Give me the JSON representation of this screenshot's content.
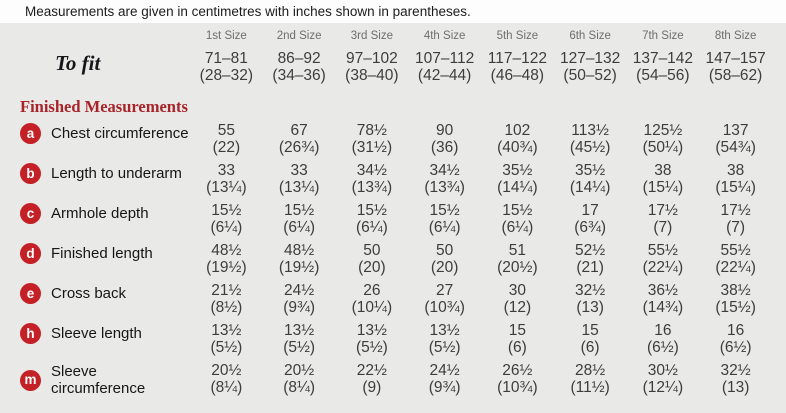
{
  "note": "Measurements are given in centimetres with inches shown in parentheses.",
  "colors": {
    "background": "#e9e9e7",
    "note_bg": "#fdfdfd",
    "badge_red": "#c42127",
    "heading_red": "#a8242a"
  },
  "table": {
    "size_headers": [
      "1st Size",
      "2nd Size",
      "3rd Size",
      "4th Size",
      "5th Size",
      "6th Size",
      "7th Size",
      "8th Size"
    ],
    "to_fit": {
      "label": "To fit",
      "cm": [
        "71–81",
        "86–92",
        "97–102",
        "107–112",
        "117–122",
        "127–132",
        "137–142",
        "147–157"
      ],
      "in": [
        "(28–32)",
        "(34–36)",
        "(38–40)",
        "(42–44)",
        "(46–48)",
        "(50–52)",
        "(54–56)",
        "(58–62)"
      ]
    },
    "section_heading": "Finished Measurements",
    "rows": [
      {
        "key": "a",
        "label": "Chest circumference",
        "cm": [
          "55",
          "67",
          "78½",
          "90",
          "102",
          "113½",
          "125½",
          "137"
        ],
        "in": [
          "(22)",
          "(26¾)",
          "(31½)",
          "(36)",
          "(40¾)",
          "(45½)",
          "(50¼)",
          "(54¾)"
        ]
      },
      {
        "key": "b",
        "label": "Length to underarm",
        "cm": [
          "33",
          "33",
          "34½",
          "34½",
          "35½",
          "35½",
          "38",
          "38"
        ],
        "in": [
          "(13¼)",
          "(13¼)",
          "(13¾)",
          "(13¾)",
          "(14¼)",
          "(14¼)",
          "(15¼)",
          "(15¼)"
        ]
      },
      {
        "key": "c",
        "label": "Armhole depth",
        "cm": [
          "15½",
          "15½",
          "15½",
          "15½",
          "15½",
          "17",
          "17½",
          "17½"
        ],
        "in": [
          "(6¼)",
          "(6¼)",
          "(6¼)",
          "(6¼)",
          "(6¼)",
          "(6¾)",
          "(7)",
          "(7)"
        ]
      },
      {
        "key": "d",
        "label": "Finished length",
        "cm": [
          "48½",
          "48½",
          "50",
          "50",
          "51",
          "52½",
          "55½",
          "55½"
        ],
        "in": [
          "(19½)",
          "(19½)",
          "(20)",
          "(20)",
          "(20½)",
          "(21)",
          "(22¼)",
          "(22¼)"
        ]
      },
      {
        "key": "e",
        "label": "Cross back",
        "cm": [
          "21½",
          "24½",
          "26",
          "27",
          "30",
          "32½",
          "36½",
          "38½"
        ],
        "in": [
          "(8½)",
          "(9¾)",
          "(10¼)",
          "(10¾)",
          "(12)",
          "(13)",
          "(14¾)",
          "(15½)"
        ]
      },
      {
        "key": "h",
        "label": "Sleeve length",
        "cm": [
          "13½",
          "13½",
          "13½",
          "13½",
          "15",
          "15",
          "16",
          "16"
        ],
        "in": [
          "(5½)",
          "(5½)",
          "(5½)",
          "(5½)",
          "(6)",
          "(6)",
          "(6½)",
          "(6½)"
        ]
      },
      {
        "key": "m",
        "label": "Sleeve circumference",
        "cm": [
          "20½",
          "20½",
          "22½",
          "24½",
          "26½",
          "28½",
          "30½",
          "32½"
        ],
        "in": [
          "(8¼)",
          "(8¼)",
          "(9)",
          "(9¾)",
          "(10¾)",
          "(11½)",
          "(12¼)",
          "(13)"
        ]
      }
    ]
  }
}
